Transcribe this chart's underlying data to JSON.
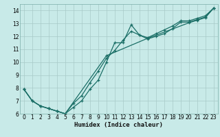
{
  "title": "",
  "xlabel": "Humidex (Indice chaleur)",
  "background_color": "#c8eae8",
  "plot_bg_color": "#c8eae8",
  "grid_color": "#a8cac8",
  "line_color": "#1a6e66",
  "xlim": [
    -0.5,
    23.5
  ],
  "ylim": [
    6,
    14.5
  ],
  "xticks": [
    0,
    1,
    2,
    3,
    4,
    5,
    6,
    7,
    8,
    9,
    10,
    11,
    12,
    13,
    14,
    15,
    16,
    17,
    18,
    19,
    20,
    21,
    22,
    23
  ],
  "yticks": [
    6,
    7,
    8,
    9,
    10,
    11,
    12,
    13,
    14
  ],
  "line1_x": [
    0,
    1,
    2,
    3,
    4,
    5,
    6,
    7,
    8,
    9,
    10,
    11,
    12,
    13,
    14,
    15,
    16,
    17,
    18,
    19,
    20,
    21,
    22,
    23
  ],
  "line1_y": [
    7.9,
    7.0,
    6.6,
    6.4,
    6.2,
    6.0,
    6.5,
    7.0,
    7.9,
    8.6,
    10.0,
    11.5,
    11.5,
    12.9,
    12.1,
    11.8,
    12.0,
    12.2,
    12.6,
    13.1,
    13.1,
    13.3,
    13.5,
    14.2
  ],
  "line2_x": [
    0,
    1,
    2,
    3,
    4,
    5,
    6,
    7,
    8,
    9,
    10,
    11,
    12,
    13,
    14,
    15,
    16,
    17,
    18,
    19,
    20,
    21,
    22,
    23
  ],
  "line2_y": [
    7.9,
    7.0,
    6.6,
    6.4,
    6.2,
    6.0,
    6.8,
    7.4,
    8.4,
    9.3,
    10.3,
    10.9,
    11.7,
    12.4,
    12.1,
    11.9,
    12.2,
    12.5,
    12.8,
    13.2,
    13.2,
    13.4,
    13.6,
    14.2
  ],
  "line3_x": [
    0,
    1,
    2,
    3,
    4,
    5,
    10,
    15,
    20,
    21,
    22,
    23
  ],
  "line3_y": [
    7.9,
    7.0,
    6.6,
    6.4,
    6.2,
    6.0,
    10.5,
    11.85,
    13.05,
    13.25,
    13.45,
    14.2
  ]
}
